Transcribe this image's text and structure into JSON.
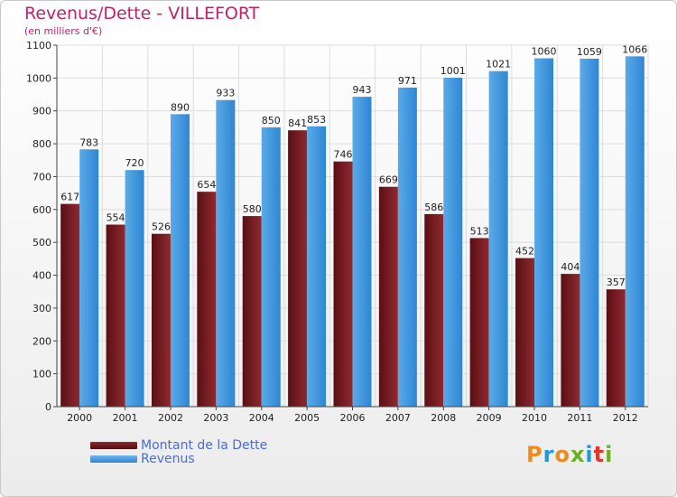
{
  "title": "Revenus/Dette - VILLEFORT",
  "subtitle": "(en milliers d'€)",
  "logo": {
    "text": "Proxiti",
    "colors": [
      "#f08a1e",
      "#1e9ad6",
      "#f08a1e",
      "#6ab023",
      "#1e9ad6",
      "#e5342a",
      "#6ab023"
    ]
  },
  "colors": {
    "dette": "#7a1f24",
    "revenus": "#3d93dc",
    "title": "#c0226a",
    "legend_text": "#4a6cd4",
    "grid": "#dddddd"
  },
  "chart_data": {
    "type": "bar",
    "title": "Revenus/Dette - VILLEFORT",
    "subtitle": "(en milliers d'€)",
    "categories": [
      "2000",
      "2001",
      "2002",
      "2003",
      "2004",
      "2005",
      "2006",
      "2007",
      "2008",
      "2009",
      "2010",
      "2011",
      "2012"
    ],
    "series": [
      {
        "name": "Montant de la Dette",
        "values": [
          617,
          554,
          526,
          654,
          580,
          841,
          746,
          669,
          586,
          513,
          452,
          404,
          357
        ]
      },
      {
        "name": "Revenus",
        "values": [
          783,
          720,
          890,
          933,
          850,
          853,
          943,
          971,
          1001,
          1021,
          1060,
          1059,
          1066
        ]
      }
    ],
    "ylim": [
      0,
      1100
    ],
    "yticks": [
      0,
      100,
      200,
      300,
      400,
      500,
      600,
      700,
      800,
      900,
      1000,
      1100
    ],
    "grid": true,
    "legend": "bottom-left"
  }
}
